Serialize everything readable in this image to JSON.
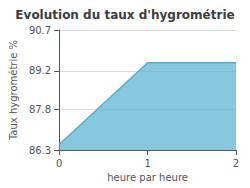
{
  "chart_data": {
    "type": "area",
    "title": "Evolution du taux d'hygrométrie",
    "xlabel": "heure par heure",
    "ylabel": "Taux hygrométrie %",
    "x": [
      0,
      1,
      2
    ],
    "values": [
      86.5,
      89.5,
      89.5
    ],
    "color": "#55b0d0",
    "xlim": [
      0,
      2
    ],
    "xticks": [
      0,
      1,
      2
    ],
    "ylim": [
      86.3,
      90.7
    ],
    "yticks": [
      86.3,
      87.8,
      89.2,
      90.7
    ],
    "grid": true
  }
}
